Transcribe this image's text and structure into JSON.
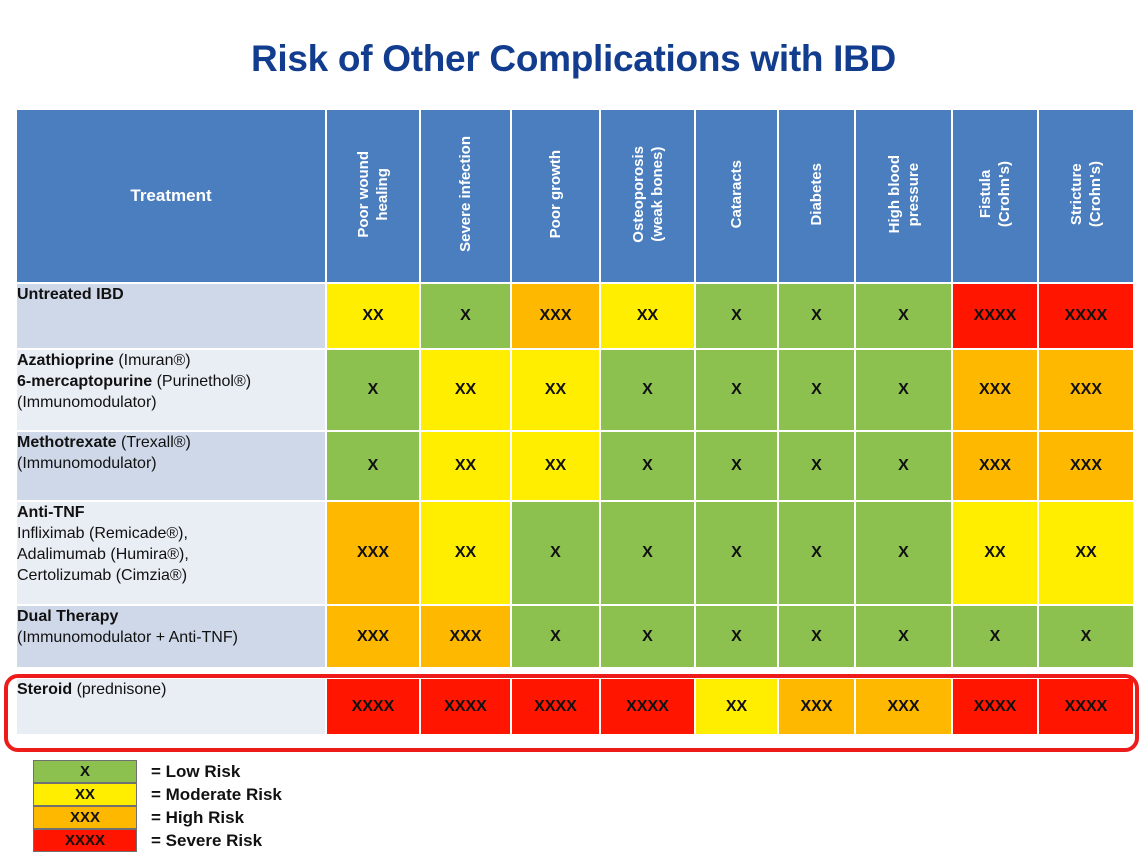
{
  "chart_data": {
    "type": "table",
    "title": "Risk of Other Complications with IBD",
    "row_header": "Treatment",
    "columns": [
      "Poor wound\nhealing",
      "Severe infection",
      "Poor growth",
      "Osteoporosis\n(weak bones)",
      "Cataracts",
      "Diabetes",
      "High blood\npressure",
      "Fistula\n(Crohn's)",
      "Stricture\n(Crohn's)"
    ],
    "rows": [
      {
        "lines": [
          [
            {
              "b": "Untreated IBD"
            }
          ]
        ],
        "values": [
          2,
          1,
          3,
          2,
          1,
          1,
          1,
          4,
          4
        ]
      },
      {
        "lines": [
          [
            {
              "b": "Azathioprine"
            },
            {
              "t": " (Imuran®)"
            }
          ],
          [
            {
              "b": "6-mercaptopurine"
            },
            {
              "t": " (Purinethol®)"
            }
          ],
          [
            {
              "t": "(Immunomodulator)"
            }
          ]
        ],
        "values": [
          1,
          2,
          2,
          1,
          1,
          1,
          1,
          3,
          3
        ]
      },
      {
        "lines": [
          [
            {
              "b": "Methotrexate"
            },
            {
              "t": " (Trexall®)"
            }
          ],
          [
            {
              "t": "(Immunomodulator)"
            }
          ]
        ],
        "values": [
          1,
          2,
          2,
          1,
          1,
          1,
          1,
          3,
          3
        ]
      },
      {
        "lines": [
          [
            {
              "b": "Anti-TNF"
            }
          ],
          [
            {
              "t": "Infliximab (Remicade®),"
            }
          ],
          [
            {
              "t": "Adalimumab (Humira®),"
            }
          ],
          [
            {
              "t": "Certolizumab (Cimzia®)"
            }
          ]
        ],
        "values": [
          3,
          2,
          1,
          1,
          1,
          1,
          1,
          2,
          2
        ]
      },
      {
        "lines": [
          [
            {
              "b": "Dual Therapy"
            }
          ],
          [
            {
              "t": "(Immunomodulator + Anti-TNF)"
            }
          ]
        ],
        "values": [
          3,
          3,
          1,
          1,
          1,
          1,
          1,
          1,
          1
        ]
      },
      {
        "lines": [
          [
            {
              "b": "Steroid"
            },
            {
              "t": " (prednisone)"
            }
          ]
        ],
        "values": [
          4,
          4,
          4,
          4,
          2,
          3,
          3,
          4,
          4
        ],
        "highlighted": true
      }
    ],
    "levels": {
      "1": {
        "mark": "X",
        "label": "= Low Risk",
        "color": "#8cc04f"
      },
      "2": {
        "mark": "XX",
        "label": "= Moderate Risk",
        "color": "#ffee00"
      },
      "3": {
        "mark": "XXX",
        "label": "= High Risk",
        "color": "#ffb800"
      },
      "4": {
        "mark": "XXXX",
        "label": "= Severe Risk",
        "color": "#ff1500"
      }
    }
  },
  "colors": {
    "title": "#123d8e",
    "header_bg": "#4a7ebf",
    "highlight_border": "#ee1b1b"
  }
}
